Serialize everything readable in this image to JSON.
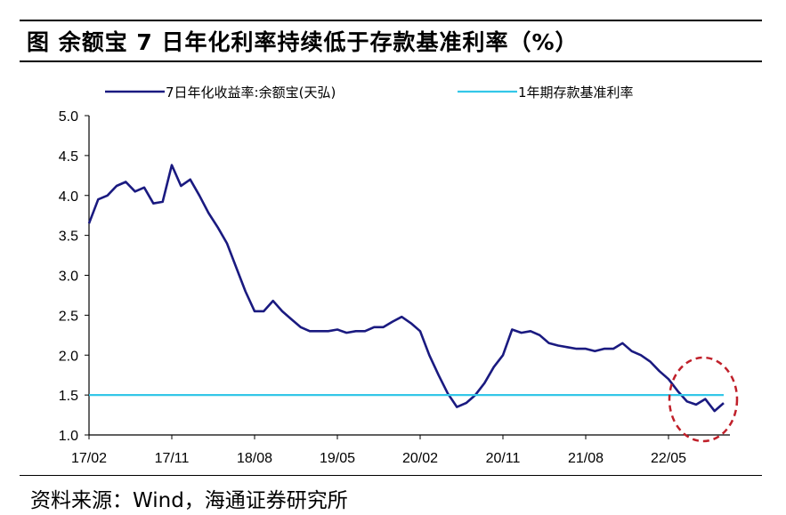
{
  "title": "图  余额宝 7 日年化利率持续低于存款基准利率（%）",
  "source": "资料来源：Wind，海通证券研究所",
  "chart_data": {
    "type": "line",
    "title": "图  余额宝 7 日年化利率持续低于存款基准利率（%）",
    "xlabel": "",
    "ylabel": "",
    "ylim": [
      1.0,
      5.0
    ],
    "yticks": [
      "5.0",
      "4.5",
      "4.0",
      "3.5",
      "3.0",
      "2.5",
      "2.0",
      "1.5",
      "1.0"
    ],
    "xticks": [
      "17/02",
      "17/11",
      "18/08",
      "19/05",
      "20/02",
      "20/11",
      "21/08",
      "22/05"
    ],
    "grid": false,
    "legend_position": "top",
    "series": [
      {
        "name": "7日年化收益率:余额宝(天弘)",
        "color": "#1a1a80",
        "points": [
          [
            "17/02",
            3.65
          ],
          [
            "17/03",
            3.95
          ],
          [
            "17/04",
            4.0
          ],
          [
            "17/05",
            4.12
          ],
          [
            "17/06",
            4.17
          ],
          [
            "17/07",
            4.05
          ],
          [
            "17/08",
            4.1
          ],
          [
            "17/09",
            3.9
          ],
          [
            "17/10",
            3.92
          ],
          [
            "17/11",
            4.38
          ],
          [
            "17/12",
            4.12
          ],
          [
            "18/01",
            4.2
          ],
          [
            "18/02",
            4.0
          ],
          [
            "18/03",
            3.78
          ],
          [
            "18/04",
            3.6
          ],
          [
            "18/05",
            3.4
          ],
          [
            "18/06",
            3.1
          ],
          [
            "18/07",
            2.8
          ],
          [
            "18/08",
            2.55
          ],
          [
            "18/09",
            2.55
          ],
          [
            "18/10",
            2.68
          ],
          [
            "18/11",
            2.55
          ],
          [
            "18/12",
            2.45
          ],
          [
            "19/01",
            2.35
          ],
          [
            "19/02",
            2.3
          ],
          [
            "19/03",
            2.3
          ],
          [
            "19/04",
            2.3
          ],
          [
            "19/05",
            2.32
          ],
          [
            "19/06",
            2.28
          ],
          [
            "19/07",
            2.3
          ],
          [
            "19/08",
            2.3
          ],
          [
            "19/09",
            2.35
          ],
          [
            "19/10",
            2.35
          ],
          [
            "19/11",
            2.42
          ],
          [
            "19/12",
            2.48
          ],
          [
            "20/01",
            2.4
          ],
          [
            "20/02",
            2.3
          ],
          [
            "20/03",
            2.0
          ],
          [
            "20/04",
            1.75
          ],
          [
            "20/05",
            1.52
          ],
          [
            "20/06",
            1.35
          ],
          [
            "20/07",
            1.4
          ],
          [
            "20/08",
            1.5
          ],
          [
            "20/09",
            1.65
          ],
          [
            "20/10",
            1.85
          ],
          [
            "20/11",
            2.0
          ],
          [
            "20/12",
            2.32
          ],
          [
            "21/01",
            2.28
          ],
          [
            "21/02",
            2.3
          ],
          [
            "21/03",
            2.25
          ],
          [
            "21/04",
            2.15
          ],
          [
            "21/05",
            2.12
          ],
          [
            "21/06",
            2.1
          ],
          [
            "21/07",
            2.08
          ],
          [
            "21/08",
            2.08
          ],
          [
            "21/09",
            2.05
          ],
          [
            "21/10",
            2.08
          ],
          [
            "21/11",
            2.08
          ],
          [
            "21/12",
            2.15
          ],
          [
            "22/01",
            2.05
          ],
          [
            "22/02",
            2.0
          ],
          [
            "22/03",
            1.92
          ],
          [
            "22/04",
            1.8
          ],
          [
            "22/05",
            1.7
          ],
          [
            "22/06",
            1.55
          ],
          [
            "22/07",
            1.42
          ],
          [
            "22/08",
            1.38
          ],
          [
            "22/09",
            1.45
          ],
          [
            "22/10",
            1.3
          ],
          [
            "22/11",
            1.4
          ]
        ]
      },
      {
        "name": "1年期存款基准利率",
        "color": "#33c7e8",
        "points": [
          [
            "17/02",
            1.5
          ],
          [
            "22/11",
            1.5
          ]
        ]
      }
    ]
  }
}
